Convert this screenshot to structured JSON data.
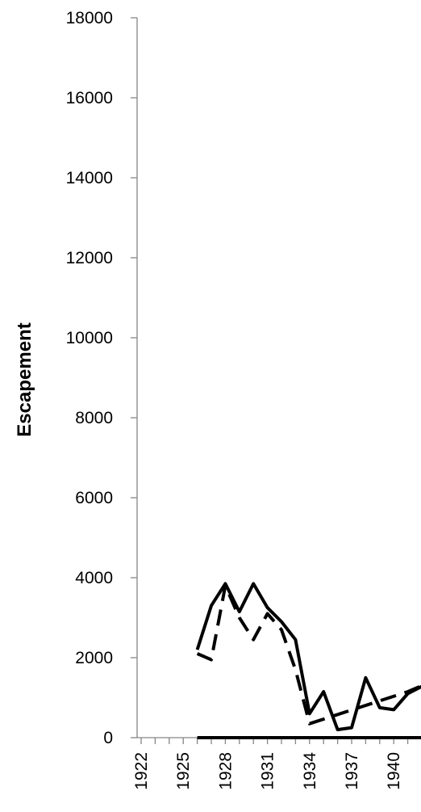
{
  "chart_data": {
    "type": "line",
    "title": "",
    "xlabel": "",
    "ylabel": "Escapement",
    "ylim": [
      0,
      18000
    ],
    "yticks": [
      0,
      2000,
      4000,
      6000,
      8000,
      10000,
      12000,
      14000,
      16000,
      18000
    ],
    "ytick_labels": [
      "0",
      "2000",
      "4000",
      "6000",
      "8000",
      "10000",
      "12000",
      "14000",
      "16000",
      "18000"
    ],
    "x_visible_range": [
      1922,
      1942
    ],
    "xticks": [
      1922,
      1925,
      1928,
      1931,
      1934,
      1937,
      1940
    ],
    "xtick_labels": [
      "1922",
      "1925",
      "1928",
      "1931",
      "1934",
      "1937",
      "1940"
    ],
    "grid": false,
    "legend": "none",
    "series": [
      {
        "style": "solid",
        "color": "#000000",
        "x": [
          1926,
          1927,
          1928,
          1929,
          1930,
          1931,
          1932,
          1933,
          1934,
          1935,
          1936,
          1937,
          1938,
          1939,
          1940,
          1941,
          1942
        ],
        "values": [
          2200,
          3300,
          3850,
          3150,
          3850,
          3250,
          2900,
          2450,
          600,
          1150,
          200,
          250,
          1500,
          750,
          700,
          1100,
          1280
        ]
      },
      {
        "style": "dashed",
        "color": "#000000",
        "x": [
          1926,
          1927,
          1928,
          1929,
          1930,
          1931,
          1932,
          1933,
          1934,
          1941,
          1942
        ],
        "values": [
          2100,
          1950,
          3800,
          3000,
          2450,
          3100,
          2700,
          1700,
          350,
          1150,
          1300
        ]
      },
      {
        "style": "solid",
        "color": "#000000",
        "x": [
          1926,
          1929,
          1932,
          1935,
          1938,
          1942
        ],
        "values": [
          0,
          0,
          0,
          0,
          0,
          0
        ]
      }
    ]
  }
}
